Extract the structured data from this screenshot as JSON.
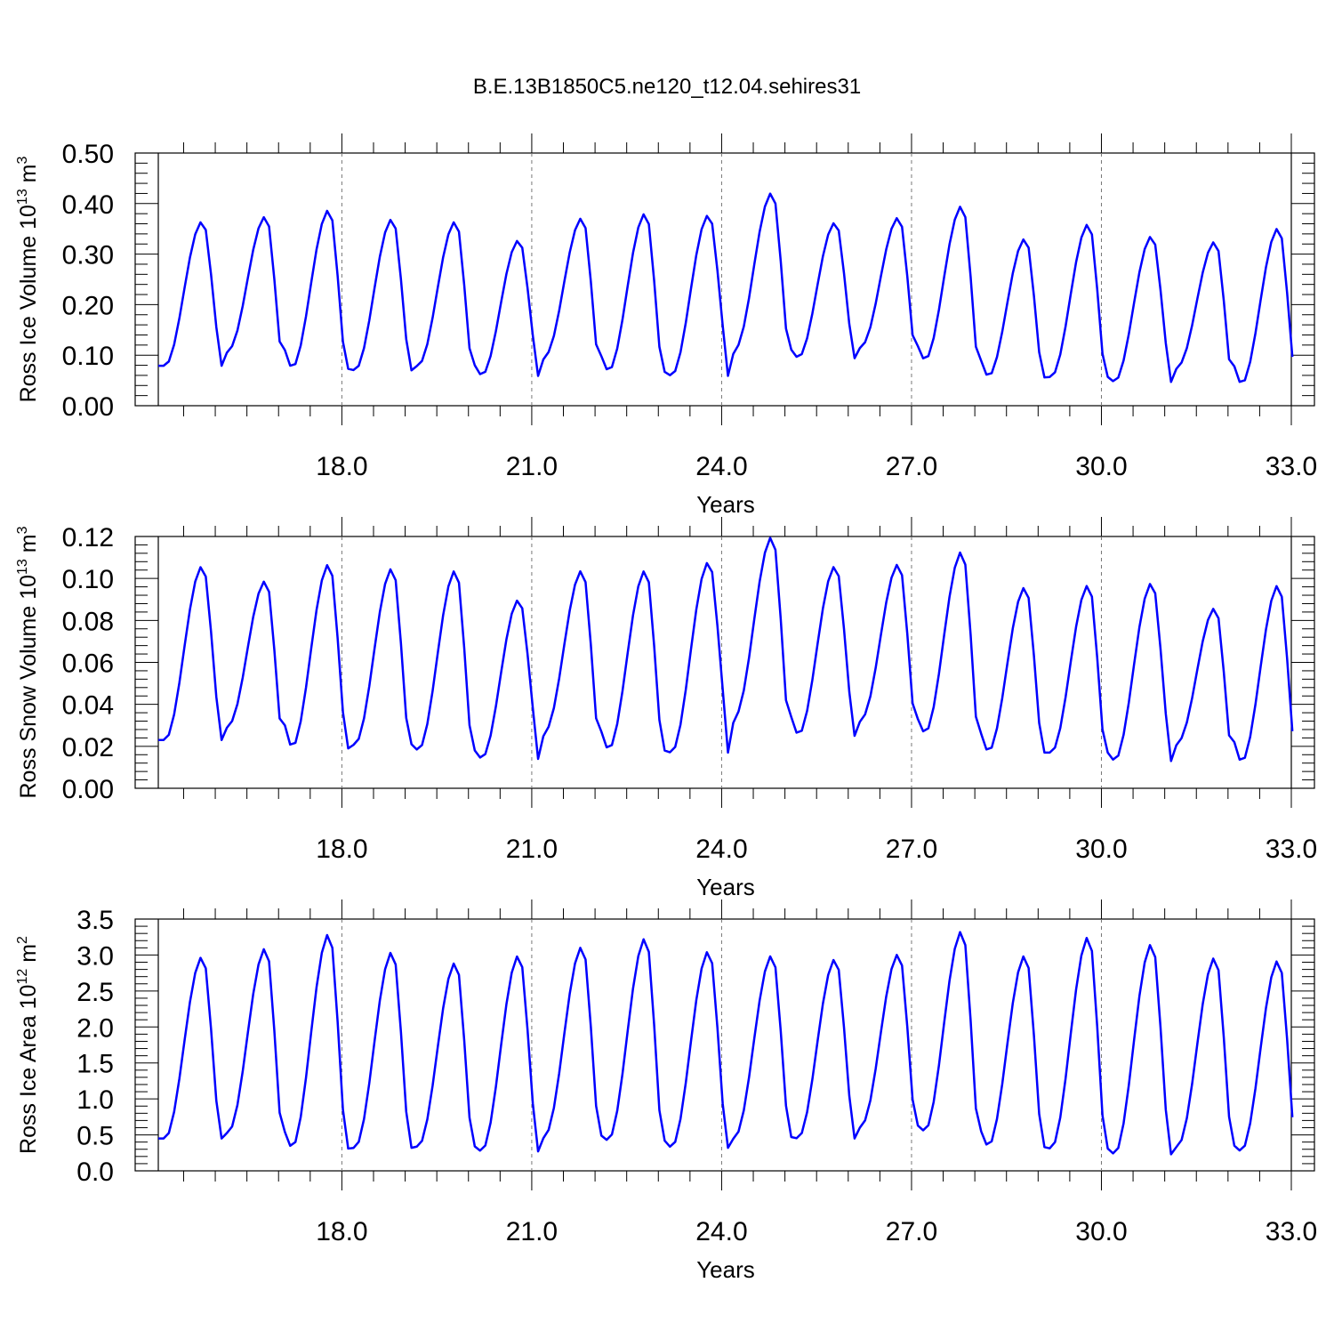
{
  "title": "B.E.13B1850C5.ne120_t12.04.sehires31",
  "series_color": "#0000ff",
  "chart_data": [
    {
      "type": "line",
      "title": "",
      "xlabel": "Years",
      "ylabel": "Ross Ice Volume 10",
      "ylabel_exp": "13",
      "ylabel_unit": " m",
      "ylabel_unit_exp": "3",
      "xlim": [
        15.1,
        33.0
      ],
      "ylim": [
        0.0,
        0.5
      ],
      "xticks": [
        "18.0",
        "21.0",
        "24.0",
        "27.0",
        "30.0",
        "33.0"
      ],
      "yticks": [
        "0.00",
        "0.10",
        "0.20",
        "0.30",
        "0.40",
        "0.50"
      ],
      "grid": "dashed vertical at labeled x ticks",
      "peaks": [
        0.365,
        0.375,
        0.388,
        0.37,
        0.365,
        0.328,
        0.372,
        0.381,
        0.378,
        0.422,
        0.363,
        0.373,
        0.396,
        0.331,
        0.36,
        0.336,
        0.325,
        0.352
      ],
      "troughs": [
        0.079,
        0.11,
        0.073,
        0.07,
        0.08,
        0.059,
        0.098,
        0.067,
        0.059,
        0.111,
        0.094,
        0.118,
        0.089,
        0.056,
        0.057,
        0.047,
        0.078,
        0.041
      ]
    },
    {
      "type": "line",
      "title": "",
      "xlabel": "Years",
      "ylabel": "Ross Snow Volume 10",
      "ylabel_exp": "13",
      "ylabel_unit": " m",
      "ylabel_unit_exp": "3",
      "xlim": [
        15.1,
        33.0
      ],
      "ylim": [
        0.0,
        0.12
      ],
      "xticks": [
        "18.0",
        "21.0",
        "24.0",
        "27.0",
        "30.0",
        "33.0"
      ],
      "yticks": [
        "0.00",
        "0.02",
        "0.04",
        "0.06",
        "0.08",
        "0.10",
        "0.12"
      ],
      "grid": "dashed vertical at labeled x ticks",
      "peaks": [
        0.106,
        0.099,
        0.107,
        0.105,
        0.104,
        0.09,
        0.104,
        0.104,
        0.108,
        0.12,
        0.106,
        0.107,
        0.113,
        0.096,
        0.097,
        0.098,
        0.086,
        0.097
      ],
      "troughs": [
        0.023,
        0.03,
        0.019,
        0.021,
        0.018,
        0.014,
        0.027,
        0.018,
        0.017,
        0.034,
        0.025,
        0.033,
        0.026,
        0.017,
        0.017,
        0.013,
        0.022,
        0.012
      ]
    },
    {
      "type": "line",
      "title": "",
      "xlabel": "Years",
      "ylabel": "Ross Ice Area 10",
      "ylabel_exp": "12",
      "ylabel_unit": " m",
      "ylabel_unit_exp": "2",
      "xlim": [
        15.1,
        33.0
      ],
      "ylim": [
        0.0,
        3.5
      ],
      "xticks": [
        "18.0",
        "21.0",
        "24.0",
        "27.0",
        "30.0",
        "33.0"
      ],
      "yticks": [
        "0.0",
        "0.5",
        "1.0",
        "1.5",
        "2.0",
        "2.5",
        "3.0",
        "3.5"
      ],
      "grid": "dashed vertical at labeled x ticks",
      "peaks": [
        2.98,
        3.1,
        3.3,
        3.05,
        2.9,
        3.0,
        3.12,
        3.24,
        3.06,
        3.0,
        2.95,
        3.02,
        3.34,
        3.0,
        3.26,
        3.16,
        2.97,
        2.93
      ],
      "troughs": [
        0.45,
        0.54,
        0.31,
        0.32,
        0.34,
        0.27,
        0.49,
        0.42,
        0.32,
        0.47,
        0.45,
        0.63,
        0.55,
        0.33,
        0.31,
        0.23,
        0.35,
        0.27
      ]
    }
  ]
}
